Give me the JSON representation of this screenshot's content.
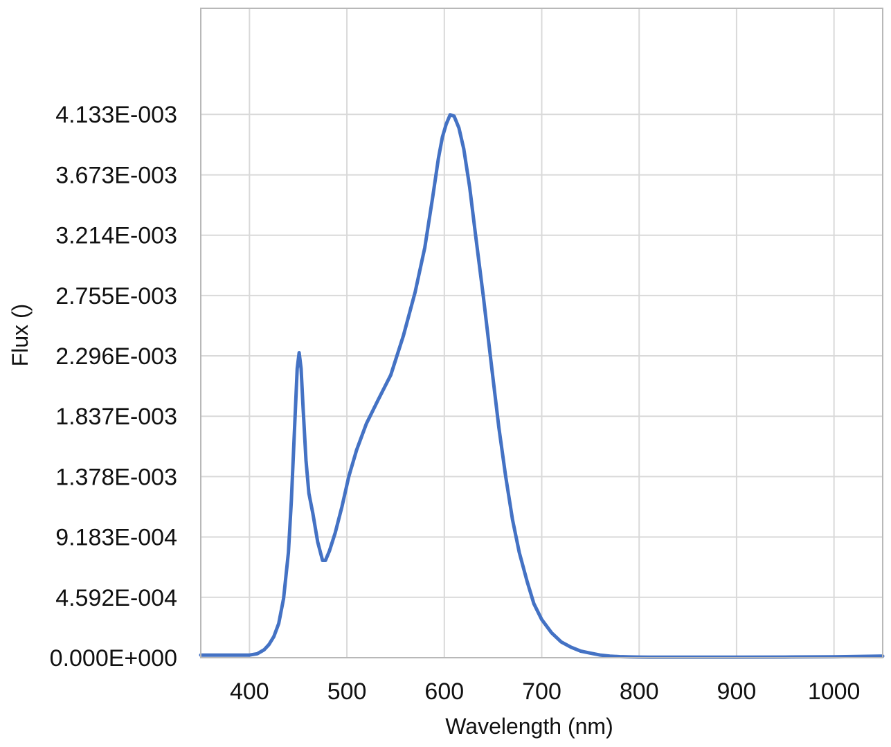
{
  "chart_data": {
    "type": "line",
    "title": "",
    "xlabel": "Wavelength (nm)",
    "ylabel": "Flux ()",
    "xlim": [
      350,
      1050
    ],
    "ylim": [
      0,
      0.00494
    ],
    "grid": true,
    "legend": "none",
    "x_ticks": [
      400,
      500,
      600,
      700,
      800,
      900,
      1000
    ],
    "x_tick_labels": [
      "400",
      "500",
      "600",
      "700",
      "800",
      "900",
      "1000"
    ],
    "y_ticks": [
      0,
      0.0004592,
      0.0009183,
      0.001378,
      0.001837,
      0.002296,
      0.002755,
      0.003214,
      0.003673,
      0.004133
    ],
    "y_tick_labels": [
      "0.000E+000",
      "4.592E-004",
      "9.183E-004",
      "1.378E-003",
      "1.837E-003",
      "2.296E-003",
      "2.755E-003",
      "3.214E-003",
      "3.673E-003",
      "4.133E-003"
    ],
    "colors": {
      "line": "#4472c4",
      "grid": "#d9d9d9",
      "frame": "#b8b8b8"
    },
    "series": [
      {
        "x": [
          350,
          380,
          400,
          408,
          415,
          420,
          425,
          430,
          435,
          440,
          443,
          446,
          449,
          451,
          453,
          455,
          458,
          461,
          465,
          470,
          475,
          478,
          482,
          488,
          495,
          502,
          510,
          520,
          532,
          545,
          558,
          570,
          580,
          588,
          594,
          598,
          602,
          606,
          610,
          615,
          620,
          626,
          632,
          640,
          648,
          656,
          663,
          670,
          677,
          685,
          692,
          700,
          710,
          720,
          730,
          740,
          750,
          760,
          770,
          780,
          790,
          800,
          810,
          820,
          850,
          900,
          950,
          1000,
          1050
        ],
        "y": [
          2e-05,
          2e-05,
          2e-05,
          3e-05,
          6e-05,
          0.0001,
          0.00016,
          0.00026,
          0.00045,
          0.0008,
          0.0012,
          0.0017,
          0.0022,
          0.00232,
          0.0022,
          0.0019,
          0.0015,
          0.00125,
          0.0011,
          0.00088,
          0.00074,
          0.00074,
          0.00081,
          0.00095,
          0.00115,
          0.00138,
          0.00158,
          0.00178,
          0.00196,
          0.00215,
          0.00245,
          0.00278,
          0.00312,
          0.0035,
          0.0038,
          0.00396,
          0.00406,
          0.00413,
          0.00412,
          0.00403,
          0.00387,
          0.00358,
          0.00322,
          0.00275,
          0.00225,
          0.00175,
          0.00138,
          0.00105,
          0.0008,
          0.00058,
          0.00041,
          0.00029,
          0.00019,
          0.00012,
          8e-05,
          5e-05,
          3.5e-05,
          2e-05,
          1.2e-05,
          8e-06,
          6e-06,
          5e-06,
          4e-06,
          3.5e-06,
          3.5e-06,
          4e-06,
          5e-06,
          7e-06,
          1.2e-05
        ]
      }
    ]
  }
}
